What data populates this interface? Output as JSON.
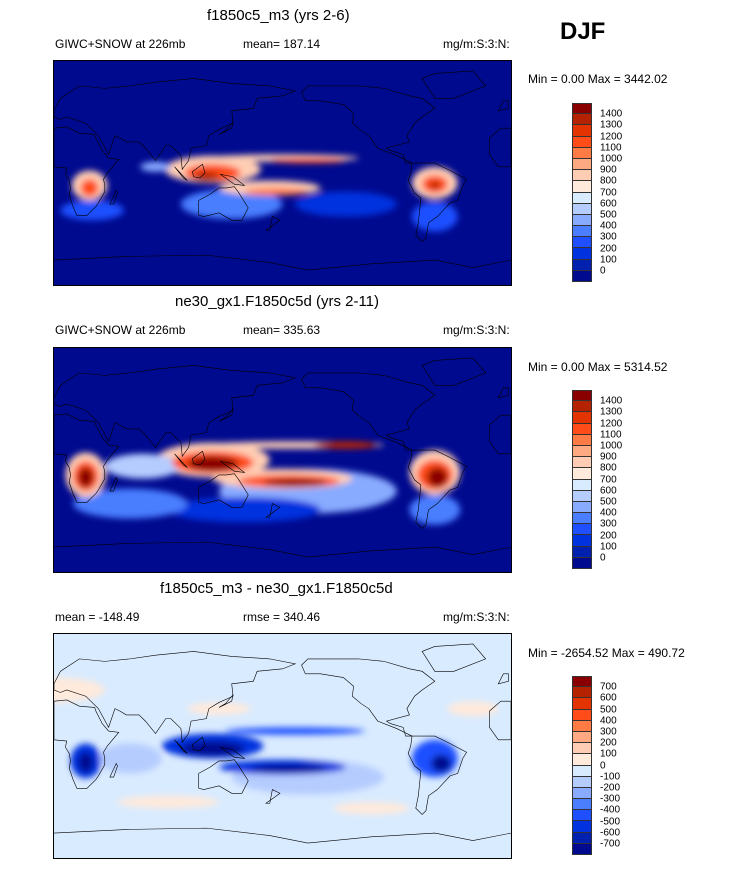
{
  "season": "DJF",
  "palette": [
    "#8a0000",
    "#b52200",
    "#e23300",
    "#ff4c18",
    "#ff7b46",
    "#ffa983",
    "#ffcdb3",
    "#ffeadb",
    "#d9ebff",
    "#b5ccff",
    "#88aaff",
    "#4a7eff",
    "#1f4fff",
    "#0032df",
    "#0020af",
    "#000a8f"
  ],
  "land_outline_color": "#000000",
  "panels": [
    {
      "title": "f1850c5_m3 (yrs 2-6)",
      "left": "GIWC+SNOW at 226mb",
      "center": "mean= 187.14",
      "right": "mg/m:S:3:N:",
      "minmax": "Min =   0.00 Max = 3442.02",
      "colorbar_labels": [
        "1400",
        "1300",
        "1200",
        "1100",
        "1000",
        "900",
        "800",
        "700",
        "600",
        "500",
        "400",
        "300",
        "200",
        "100",
        "0"
      ]
    },
    {
      "title": "ne30_gx1.F1850c5d (yrs 2-11)",
      "left": "GIWC+SNOW at 226mb",
      "center": "mean= 335.63",
      "right": "mg/m:S:3:N:",
      "minmax": "Min =   0.00 Max = 5314.52",
      "colorbar_labels": [
        "1400",
        "1300",
        "1200",
        "1100",
        "1000",
        "900",
        "800",
        "700",
        "600",
        "500",
        "400",
        "300",
        "200",
        "100",
        "0"
      ]
    },
    {
      "title": "f1850c5_m3 - ne30_gx1.F1850c5d",
      "left": "mean = -148.49",
      "center": "rmse = 340.46",
      "right": "mg/m:S:3:N:",
      "minmax": "Min = -2654.52 Max = 490.72",
      "colorbar_labels": [
        "700",
        "600",
        "500",
        "400",
        "300",
        "200",
        "100",
        "0",
        "-100",
        "-200",
        "-300",
        "-400",
        "-500",
        "-600",
        "-700"
      ]
    }
  ],
  "chart_data": [
    {
      "type": "heatmap",
      "title": "f1850c5_m3 (yrs 2-6)",
      "variable": "GIWC+SNOW at 226mb",
      "units": "mg/m:S:3:N:",
      "mean": 187.14,
      "min": 0.0,
      "max": 3442.02,
      "levels": [
        0,
        100,
        200,
        300,
        400,
        500,
        600,
        700,
        800,
        900,
        1000,
        1100,
        1200,
        1300,
        1400
      ],
      "xlim": [
        0,
        360
      ],
      "ylim": [
        -90,
        90
      ]
    },
    {
      "type": "heatmap",
      "title": "ne30_gx1.F1850c5d (yrs 2-11)",
      "variable": "GIWC+SNOW at 226mb",
      "units": "mg/m:S:3:N:",
      "mean": 335.63,
      "min": 0.0,
      "max": 5314.52,
      "levels": [
        0,
        100,
        200,
        300,
        400,
        500,
        600,
        700,
        800,
        900,
        1000,
        1100,
        1200,
        1300,
        1400
      ],
      "xlim": [
        0,
        360
      ],
      "ylim": [
        -90,
        90
      ]
    },
    {
      "type": "heatmap",
      "title": "f1850c5_m3 - ne30_gx1.F1850c5d",
      "units": "mg/m:S:3:N:",
      "mean": -148.49,
      "rmse": 340.46,
      "min": -2654.52,
      "max": 490.72,
      "levels": [
        -700,
        -600,
        -500,
        -400,
        -300,
        -200,
        -100,
        0,
        100,
        200,
        300,
        400,
        500,
        600,
        700
      ],
      "xlim": [
        0,
        360
      ],
      "ylim": [
        -90,
        90
      ]
    }
  ]
}
